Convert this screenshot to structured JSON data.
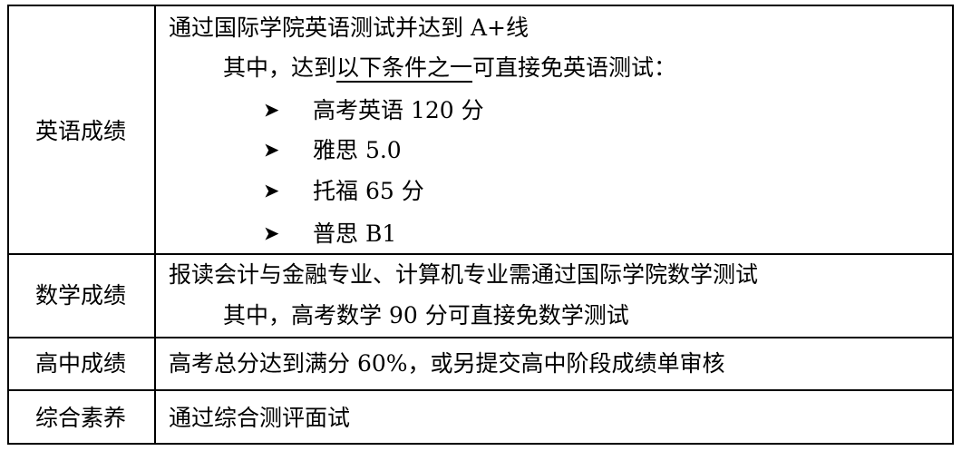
{
  "rows": [
    {
      "label": "英语成绩",
      "line1": "通过国际学院英语测试并达到 A+线",
      "line2_pre": "其中，达到",
      "line2_u": "以下条件之一",
      "line2_post": "可直接免英语测试：",
      "bullet_icon": "arrowhead-bullet",
      "bullets": [
        "高考英语 120 分",
        "雅思 5.0",
        "托福 65 分",
        "普思 B1"
      ]
    },
    {
      "label": "数学成绩",
      "line1": "报读会计与金融专业、计算机专业需通过国际学院数学测试",
      "line2": "其中，高考数学 90 分可直接免数学测试"
    },
    {
      "label": "高中成绩",
      "line1": "高考总分达到满分 60%，或另提交高中阶段成绩单审核"
    },
    {
      "label": "综合素养",
      "line1": "通过综合测评面试"
    }
  ]
}
